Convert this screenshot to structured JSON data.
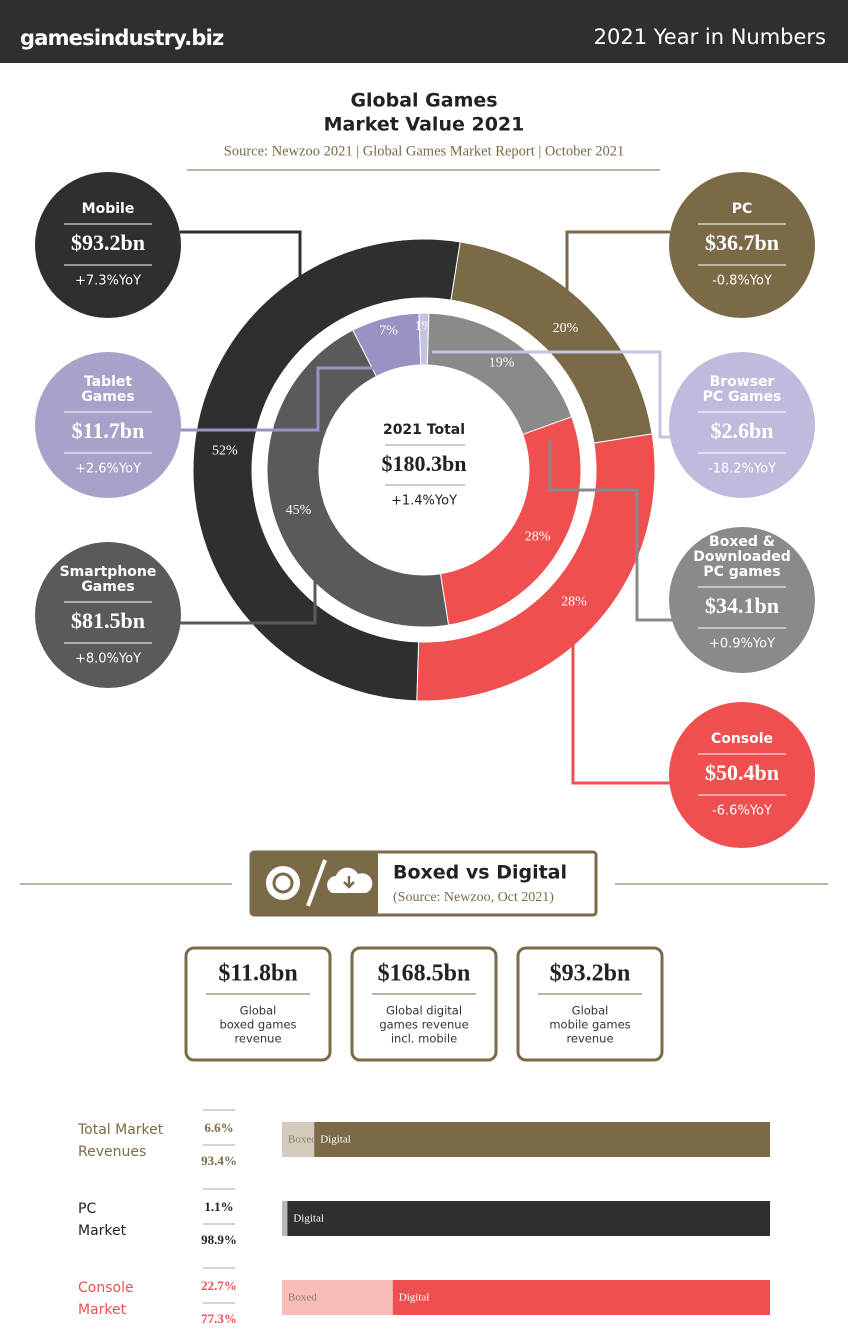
{
  "header": {
    "brand": "gamesindustry.biz",
    "title": "2021 Year in Numbers"
  },
  "chart_data": {
    "type": "donut",
    "title": [
      "Global Games",
      "Market Value 2021"
    ],
    "subtitle": "Source: Newzoo 2021 | Global Games Market Report | October 2021",
    "center": {
      "label": "2021 Total",
      "value": "$180.3bn",
      "change": "+1.4%YoY"
    },
    "rings": [
      {
        "values": [
          20,
          28,
          52
        ],
        "value_labels": [
          "20%",
          "28%",
          "52%"
        ],
        "colors": [
          "#7a6a48",
          "#ef4f4f",
          "#2d302e"
        ]
      },
      {
        "values": [
          7,
          1,
          19,
          28,
          45
        ],
        "value_labels": [
          "7%",
          "1%",
          "19%",
          "28%",
          "45%"
        ],
        "colors": [
          "#9893c2",
          "#c4c3e0",
          "#8a8a8a",
          "#ef4f4f",
          "#5a5a5a"
        ]
      }
    ],
    "callouts": [
      {
        "name": [
          "Mobile"
        ],
        "value": "$93.2bn",
        "change": "+7.3%YoY",
        "color": "#2d302e"
      },
      {
        "name": [
          "Tablet",
          "Games"
        ],
        "value": "$11.7bn",
        "change": "+2.6%YoY",
        "color": "#a6a2c9"
      },
      {
        "name": [
          "Smartphone",
          "Games"
        ],
        "value": "$81.5bn",
        "change": "+8.0%YoY",
        "color": "#5a5a5a"
      },
      {
        "name": [
          "PC"
        ],
        "value": "$36.7bn",
        "change": "-0.8%YoY",
        "color": "#7a6a48"
      },
      {
        "name": [
          "Browser",
          "PC Games"
        ],
        "value": "$2.6bn",
        "change": "-18.2%YoY",
        "color": "#bdbcdc"
      },
      {
        "name": [
          "Boxed &",
          "Downloaded",
          "PC games"
        ],
        "value": "$34.1bn",
        "change": "+0.9%YoY",
        "color": "#8a8a8a"
      },
      {
        "name": [
          "Console"
        ],
        "value": "$50.4bn",
        "change": "-6.6%YoY",
        "color": "#ef4f4f"
      }
    ]
  },
  "boxed_vs_digital": {
    "title": "Boxed vs Digital",
    "source": "(Source: Newzoo, Oct 2021)",
    "stats": [
      {
        "value": "$11.8bn",
        "description": [
          "Global",
          "boxed games",
          "revenue"
        ]
      },
      {
        "value": "$168.5bn",
        "description": [
          "Global digital",
          "games  revenue",
          "incl. mobile"
        ]
      },
      {
        "value": "$93.2bn",
        "description": [
          "Global",
          "mobile games",
          "revenue"
        ]
      }
    ],
    "bars": {
      "type": "stacked-bar",
      "xlim": [
        0,
        100
      ],
      "rows": [
        {
          "label": [
            "Total Market",
            "Revenues"
          ],
          "values": [
            6.6,
            93.4
          ],
          "value_labels": [
            "6.6%",
            "93.4%"
          ],
          "segments": [
            "Boxed",
            "Digital"
          ],
          "colors": [
            "#d3cbbb",
            "#7a6a48"
          ],
          "text_color": "#7a6a48"
        },
        {
          "label": [
            "PC",
            "Market"
          ],
          "values": [
            1.1,
            98.9
          ],
          "value_labels": [
            "1.1%",
            "98.9%"
          ],
          "segments": [
            null,
            "Digital"
          ],
          "colors": [
            "#b8b8b8",
            "#2d302e"
          ],
          "text_color": "#222222"
        },
        {
          "label": [
            "Console",
            "Market"
          ],
          "values": [
            22.7,
            77.3
          ],
          "value_labels": [
            "22.7%",
            "77.3%"
          ],
          "segments": [
            "Boxed",
            "Digital"
          ],
          "colors": [
            "#f7bdb8",
            "#ef4f4f"
          ],
          "text_color": "#ef4f4f"
        }
      ]
    }
  }
}
